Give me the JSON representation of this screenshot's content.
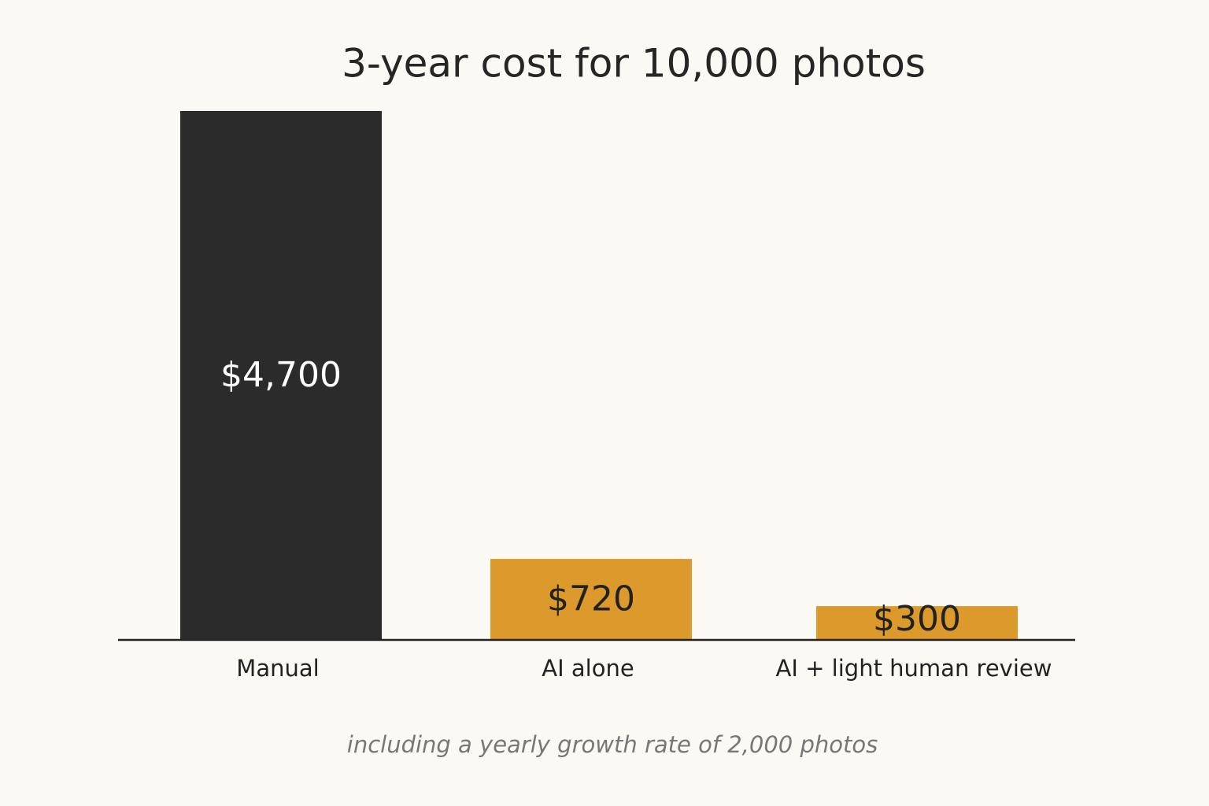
{
  "chart_data": {
    "type": "bar",
    "title": "3-year cost for 10,000 photos",
    "note": "including a yearly growth rate of 2,000 photos",
    "categories": [
      "Manual",
      "AI alone",
      "AI + light human review"
    ],
    "values": [
      4700,
      720,
      300
    ],
    "value_labels": [
      "$4,700",
      "$720",
      "$300"
    ],
    "colors": [
      "#2b2b2b",
      "#dc9a2c",
      "#dc9a2c"
    ],
    "ylim": [
      0,
      4700
    ]
  }
}
